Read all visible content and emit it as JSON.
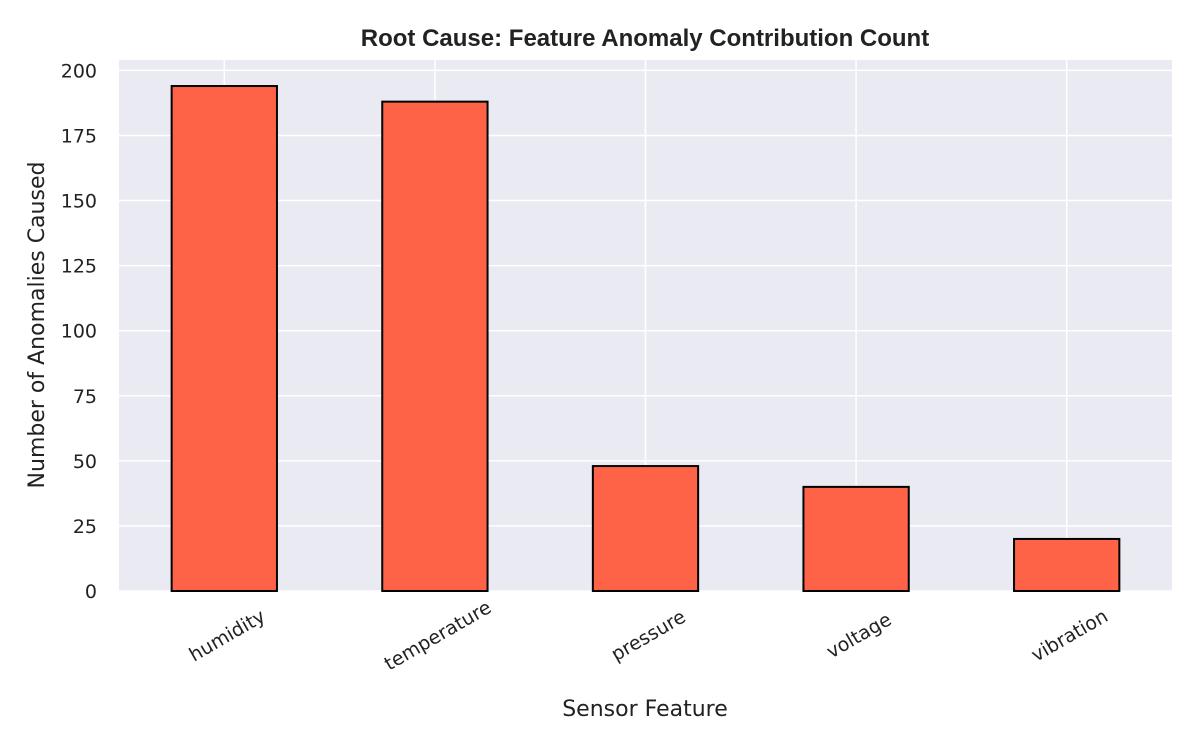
{
  "chart_data": {
    "type": "bar",
    "title": "Root Cause: Feature Anomaly Contribution Count",
    "xlabel": "Sensor Feature",
    "ylabel": "Number of Anomalies Caused",
    "categories": [
      "humidity",
      "temperature",
      "pressure",
      "voltage",
      "vibration"
    ],
    "values": [
      194,
      188,
      48,
      40,
      20
    ],
    "ylim": [
      0,
      204
    ],
    "yticks": [
      0,
      25,
      50,
      75,
      100,
      125,
      150,
      175,
      200
    ],
    "grid": true,
    "legend": "none",
    "colors": {
      "bar": "#ff6347",
      "bar_edge": "#000000",
      "plot_bg": "#eaeaf2",
      "grid": "#ffffff"
    }
  }
}
